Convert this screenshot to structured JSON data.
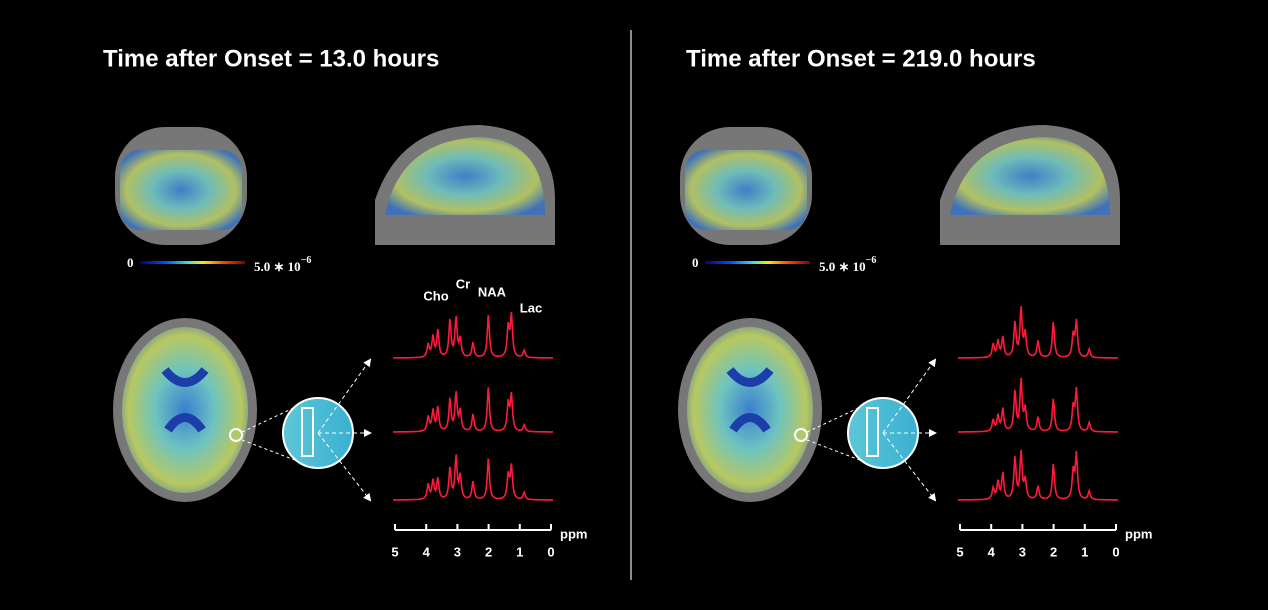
{
  "panels": [
    {
      "title": "Time after Onset = 13.0 hours",
      "colorbar": {
        "min_label": "0",
        "max_label": "5.0 ∗ 10",
        "max_exponent": "−6"
      },
      "peak_labels": [
        "Cho",
        "Cr",
        "NAA",
        "Lac"
      ],
      "ppm_axis": {
        "unit": "ppm",
        "ticks": [
          5,
          4,
          3,
          2,
          1,
          0
        ]
      }
    },
    {
      "title": "Time after Onset = 219.0 hours",
      "colorbar": {
        "min_label": "0",
        "max_label": "5.0 ∗ 10",
        "max_exponent": "−6"
      },
      "ppm_axis": {
        "unit": "ppm",
        "ticks": [
          5,
          4,
          3,
          2,
          1,
          0
        ]
      }
    }
  ]
}
